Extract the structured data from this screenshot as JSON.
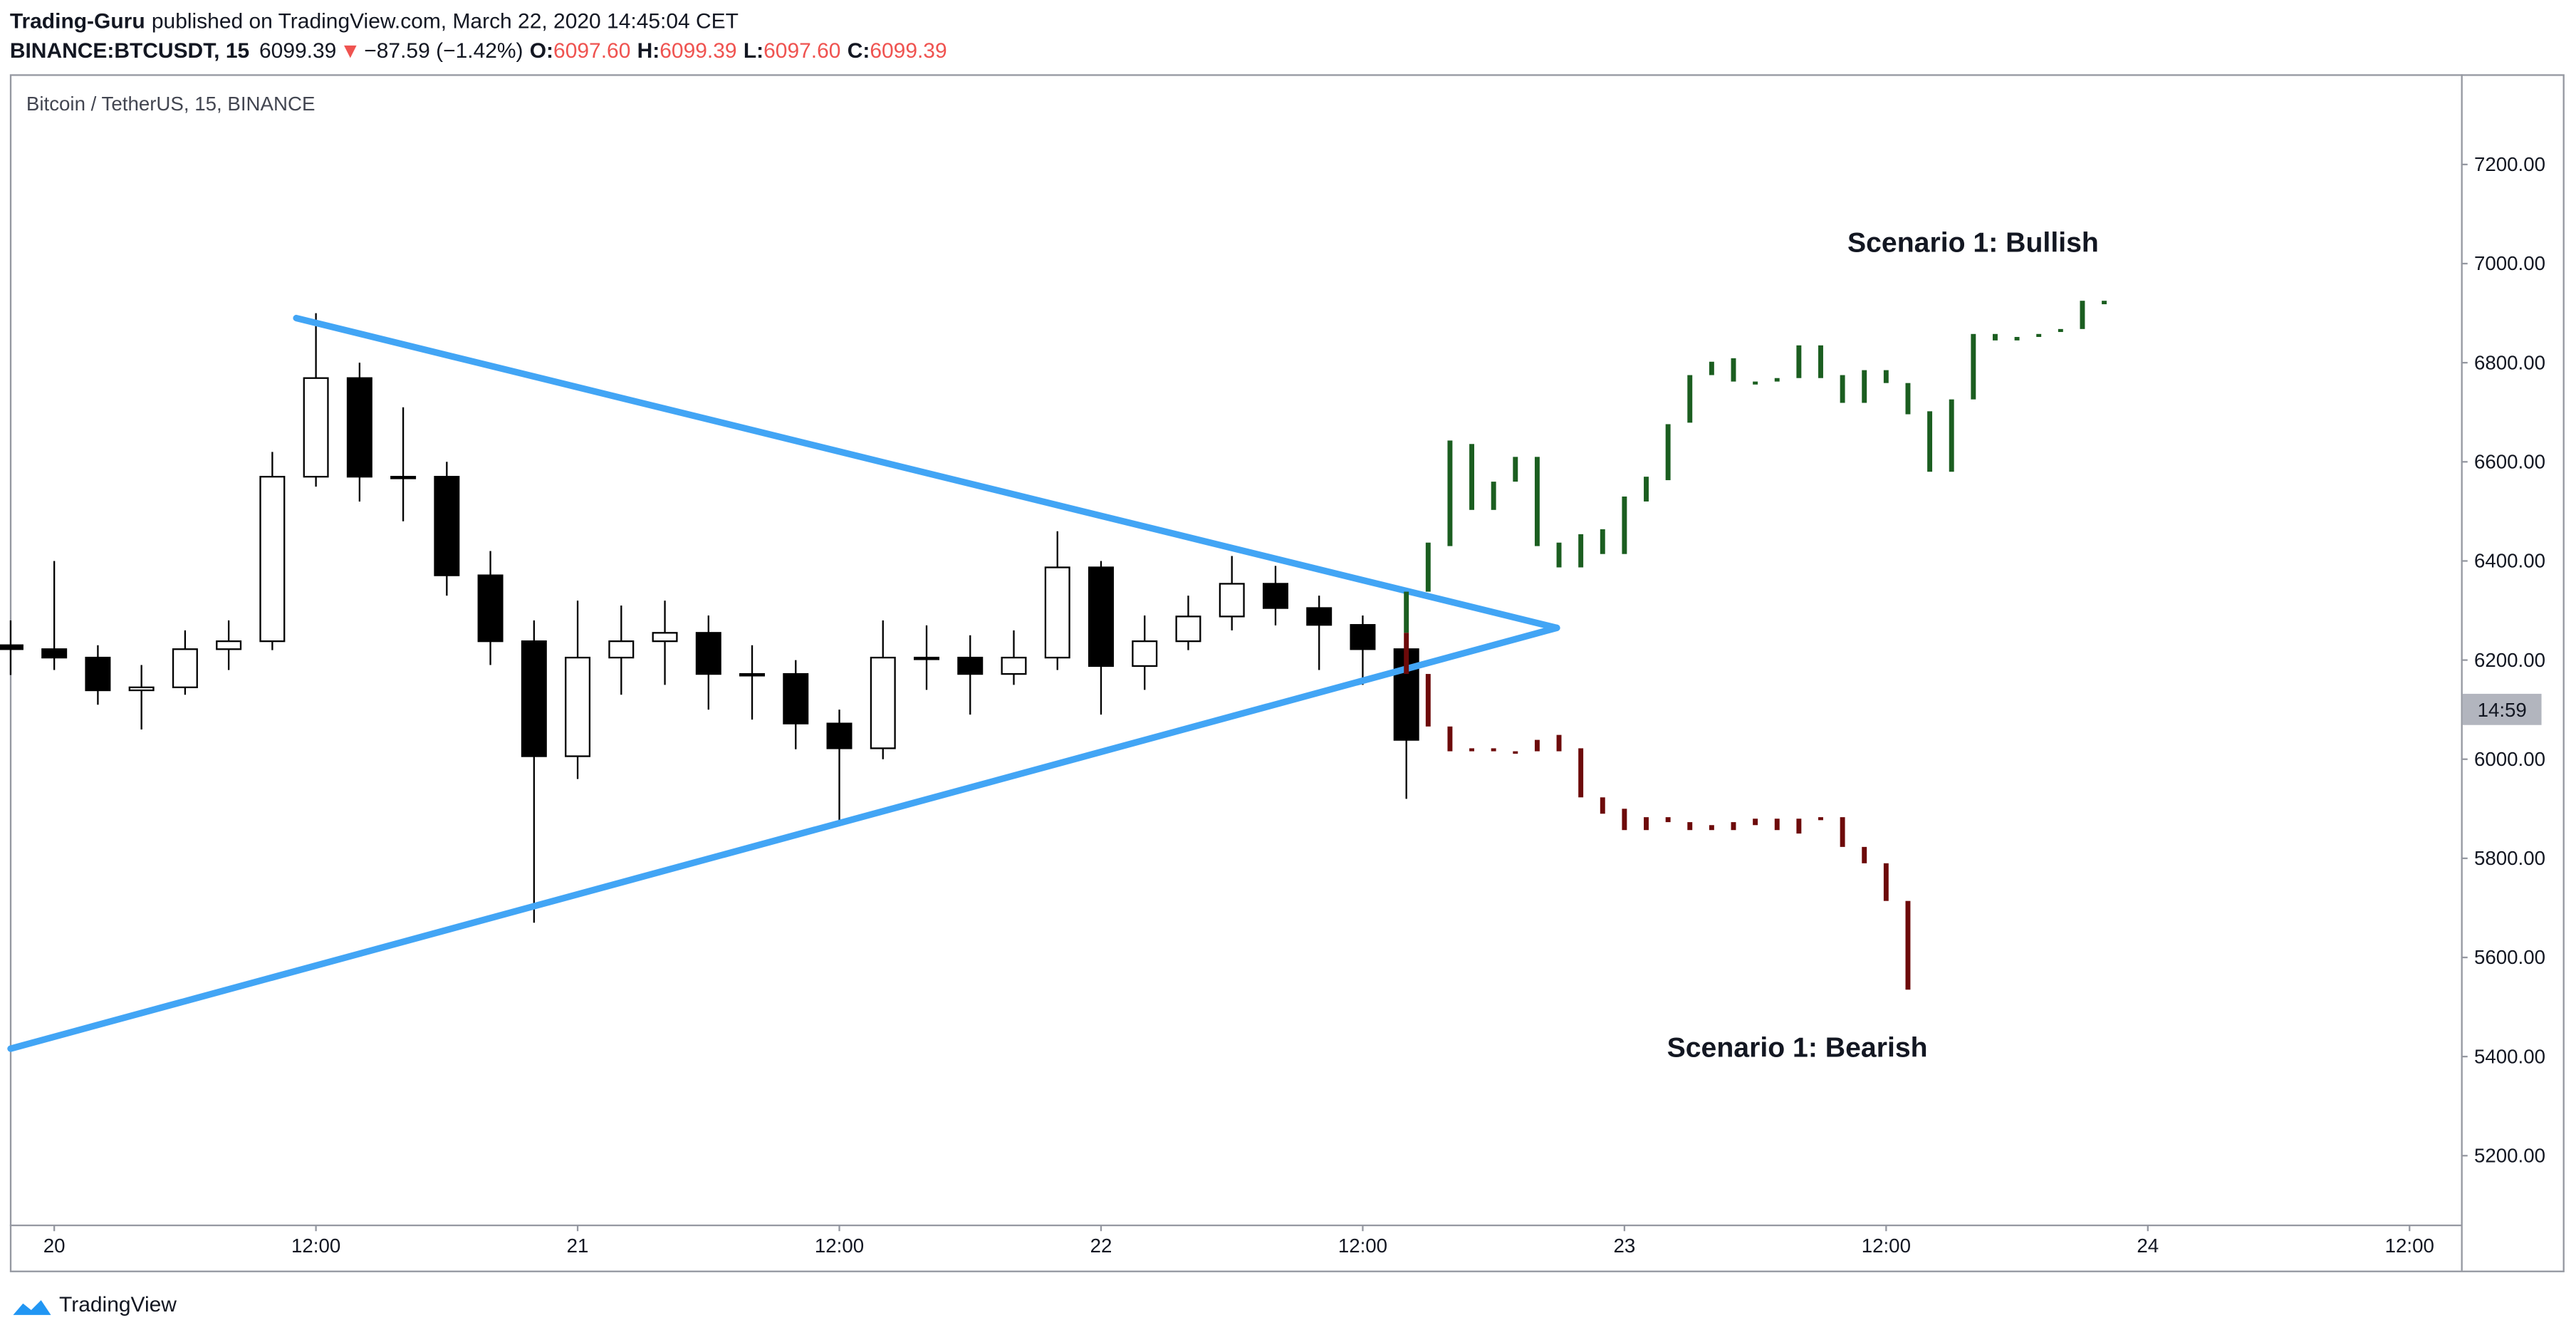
{
  "header": {
    "publisher": "Trading-Guru",
    "published": "published on TradingView.com, March 22, 2020 14:45:04 CET",
    "symbol": "BINANCE:BTCUSDT, 15",
    "last": "6099.39",
    "arrow": "▼",
    "change": "−87.59 (−1.42%)",
    "o_label": "O:",
    "open": "6097.60",
    "h_label": "H:",
    "high": "6099.39",
    "l_label": "L:",
    "low": "6097.60",
    "c_label": "C:",
    "close": "6099.39"
  },
  "chart_data": {
    "type": "candlestick",
    "title": "Bitcoin / TetherUS, 15, BINANCE",
    "x": [
      -2,
      0,
      2,
      4,
      6,
      8,
      10,
      12,
      14,
      16,
      18,
      20,
      22,
      24,
      26,
      28,
      30,
      32,
      34,
      36,
      38,
      40,
      42,
      44,
      46,
      48,
      50,
      52,
      54,
      56,
      58,
      60,
      62
    ],
    "open": [
      6230,
      6222,
      6205,
      6139,
      6145,
      6222,
      6238,
      6570,
      6769,
      6570,
      6570,
      6371,
      6238,
      6006,
      6205,
      6238,
      6255,
      6172,
      6172,
      6072,
      6022,
      6205,
      6205,
      6172,
      6205,
      6387,
      6188,
      6238,
      6288,
      6354,
      6305,
      6271,
      6222
    ],
    "high": [
      6280,
      6400,
      6230,
      6190,
      6260,
      6280,
      6620,
      6900,
      6800,
      6710,
      6600,
      6420,
      6280,
      6320,
      6310,
      6320,
      6290,
      6230,
      6200,
      6100,
      6280,
      6270,
      6250,
      6260,
      6460,
      6400,
      6290,
      6330,
      6410,
      6390,
      6330,
      6290,
      6250
    ],
    "low": [
      6170,
      6180,
      6110,
      6060,
      6130,
      6180,
      6220,
      6550,
      6520,
      6480,
      6330,
      6190,
      5670,
      5960,
      6130,
      6150,
      6100,
      6080,
      6020,
      5870,
      6000,
      6140,
      6090,
      6150,
      6180,
      6090,
      6140,
      6220,
      6260,
      6270,
      6180,
      6150,
      5920
    ],
    "close": [
      6222,
      6205,
      6139,
      6145,
      6222,
      6238,
      6570,
      6769,
      6570,
      6570,
      6371,
      6238,
      6006,
      6205,
      6238,
      6255,
      6172,
      6172,
      6072,
      6022,
      6205,
      6205,
      6172,
      6205,
      6387,
      6188,
      6238,
      6288,
      6354,
      6305,
      6271,
      6222,
      6039
    ],
    "scenarios": [
      {
        "label": "Scenario 1: Bullish",
        "color": "#1b5e20",
        "x": [
          62,
          63,
          64,
          65,
          66,
          67,
          68,
          69,
          70,
          71,
          72,
          73,
          74,
          75,
          76,
          77,
          78,
          79,
          80,
          81,
          82,
          83,
          84,
          85,
          86,
          87,
          88,
          89,
          90,
          91,
          92,
          93,
          94
        ],
        "open": [
          6255,
          6338,
          6430,
          6636,
          6560,
          6560,
          6610,
          6437,
          6387,
          6414,
          6414,
          6520,
          6563,
          6679,
          6775,
          6809,
          6762,
          6762,
          6769,
          6769,
          6775,
          6719,
          6785,
          6759,
          6702,
          6580,
          6726,
          6858,
          6845,
          6852,
          6862,
          6868,
          6918
        ],
        "close": [
          6338,
          6437,
          6643,
          6503,
          6503,
          6610,
          6430,
          6387,
          6454,
          6464,
          6530,
          6570,
          6676,
          6775,
          6802,
          6762,
          6756,
          6769,
          6835,
          6835,
          6719,
          6785,
          6759,
          6696,
          6580,
          6726,
          6858,
          6845,
          6852,
          6858,
          6868,
          6925,
          6925
        ]
      },
      {
        "label": "Scenario 1: Bearish",
        "color": "#6d0a0a",
        "x": [
          62,
          63,
          64,
          65,
          66,
          67,
          68,
          69,
          70,
          71,
          72,
          73,
          74,
          75,
          76,
          77,
          78,
          79,
          80,
          81,
          82,
          83,
          84,
          85
        ],
        "open": [
          6255,
          6172,
          6066,
          6022,
          6022,
          6016,
          6039,
          6049,
          6022,
          5923,
          5900,
          5883,
          5883,
          5873,
          5867,
          5873,
          5880,
          5880,
          5880,
          5883,
          5883,
          5823,
          5790,
          5714
        ],
        "close": [
          6172,
          6066,
          6016,
          6016,
          6016,
          6013,
          6016,
          6016,
          5923,
          5890,
          5857,
          5857,
          5873,
          5857,
          5857,
          5857,
          5867,
          5857,
          5850,
          5877,
          5823,
          5790,
          5714,
          5535
        ]
      }
    ],
    "trendlines": [
      {
        "color": "#42a5f5",
        "x": [
          11.1,
          68.9
        ],
        "y": [
          6890,
          6265
        ]
      },
      {
        "color": "#42a5f5",
        "x": [
          -2,
          68.9
        ],
        "y": [
          5416,
          6265
        ]
      }
    ],
    "price_label": "14:59",
    "xlim": [
      -1.96,
      110.36
    ],
    "xticks": [
      {
        "value": 0,
        "label": "20"
      },
      {
        "value": 12,
        "label": "12:00"
      },
      {
        "value": 24,
        "label": "21"
      },
      {
        "value": 36,
        "label": "12:00"
      },
      {
        "value": 48,
        "label": "22"
      },
      {
        "value": 60,
        "label": "12:00"
      },
      {
        "value": 72,
        "label": "23"
      },
      {
        "value": 84,
        "label": "12:00"
      },
      {
        "value": 96,
        "label": "24"
      },
      {
        "value": 108,
        "label": "12:00"
      }
    ],
    "ylim": [
      5061,
      7382
    ],
    "yticks": [
      {
        "value": 5200,
        "label": "5200.00"
      },
      {
        "value": 5400,
        "label": "5400.00"
      },
      {
        "value": 5600,
        "label": "5600.00"
      },
      {
        "value": 5800,
        "label": "5800.00"
      },
      {
        "value": 6000,
        "label": "6000.00"
      },
      {
        "value": 6200,
        "label": "6200.00"
      },
      {
        "value": 6400,
        "label": "6400.00"
      },
      {
        "value": 6600,
        "label": "6600.00"
      },
      {
        "value": 6800,
        "label": "6800.00"
      },
      {
        "value": 7000,
        "label": "7000.00"
      },
      {
        "value": 7200,
        "label": "7200.00"
      }
    ],
    "footer": "TradingView"
  }
}
